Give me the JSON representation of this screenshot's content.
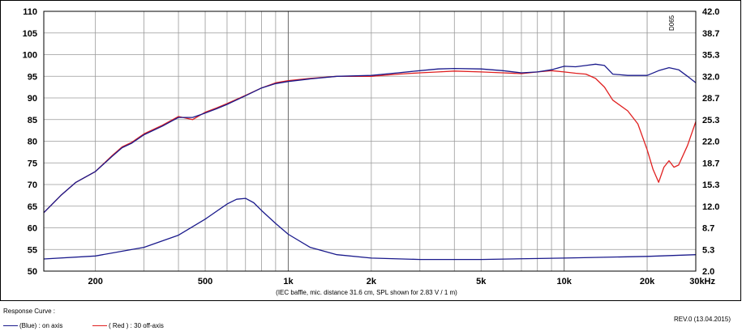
{
  "chart_data": {
    "type": "line",
    "xscale": "log",
    "xlim": [
      130,
      30000
    ],
    "ylim": [
      50,
      110
    ],
    "y2lim": [
      2.0,
      42.0
    ],
    "grid": true,
    "y_ticks": [
      "110",
      "105",
      "100",
      "95",
      "90",
      "85",
      "80",
      "75",
      "70",
      "65",
      "60",
      "55",
      "50"
    ],
    "y2_ticks": [
      "42.0",
      "38.7",
      "35.3",
      "32.0",
      "28.7",
      "25.3",
      "22.0",
      "18.7",
      "15.3",
      "12.0",
      "8.7",
      "5.3",
      "2.0"
    ],
    "x_tick_labels": [
      {
        "x": 200,
        "label": "200"
      },
      {
        "x": 500,
        "label": "500"
      },
      {
        "x": 1000,
        "label": "1k"
      },
      {
        "x": 2000,
        "label": "2k"
      },
      {
        "x": 5000,
        "label": "5k"
      },
      {
        "x": 10000,
        "label": "10k"
      },
      {
        "x": 20000,
        "label": "20k"
      },
      {
        "x": 30000,
        "label": "30kHz"
      }
    ],
    "xlabel": "(IEC baffle, mic. distance 31.6 cm, SPL shown for 2.83 V / 1 m)",
    "corner_text": "D065",
    "series": [
      {
        "name": "(Blue) : on axis",
        "color": "#1a1a8c",
        "x": [
          130,
          150,
          170,
          200,
          230,
          250,
          270,
          300,
          350,
          400,
          450,
          500,
          550,
          600,
          700,
          800,
          900,
          1000,
          1200,
          1500,
          2000,
          2500,
          3000,
          3500,
          4000,
          5000,
          6000,
          7000,
          8000,
          9000,
          10000,
          11000,
          12000,
          13000,
          14000,
          15000,
          17000,
          20000,
          22000,
          24000,
          26000,
          28000,
          30000
        ],
        "y": [
          63.5,
          67.5,
          70.5,
          73,
          76.5,
          78.5,
          79.5,
          81.5,
          83.5,
          85.5,
          85.5,
          86.5,
          87.5,
          88.5,
          90.5,
          92.3,
          93.3,
          93.8,
          94.4,
          95,
          95.2,
          95.8,
          96.3,
          96.7,
          96.8,
          96.7,
          96.3,
          95.8,
          96,
          96.5,
          97.3,
          97.2,
          97.5,
          97.8,
          97.5,
          95.5,
          95.2,
          95.2,
          96.3,
          97,
          96.5,
          95,
          93.5
        ]
      },
      {
        "name": "( Red ) : 30 off-axis",
        "color": "#e02020",
        "x": [
          130,
          150,
          170,
          200,
          230,
          250,
          270,
          300,
          350,
          400,
          450,
          500,
          550,
          600,
          700,
          800,
          900,
          1000,
          1200,
          1500,
          2000,
          2500,
          3000,
          3500,
          4000,
          5000,
          6000,
          7000,
          8000,
          9000,
          10000,
          11000,
          12000,
          13000,
          14000,
          15000,
          17000,
          18500,
          20000,
          21000,
          22000,
          23000,
          24000,
          25000,
          26000,
          28000,
          30000
        ],
        "y": [
          63.5,
          67.5,
          70.5,
          73,
          76.7,
          78.7,
          79.7,
          81.7,
          83.7,
          85.7,
          85,
          86.7,
          87.7,
          88.7,
          90.6,
          92.3,
          93.5,
          94,
          94.5,
          95,
          95,
          95.5,
          95.8,
          96,
          96.2,
          96,
          95.8,
          95.6,
          96,
          96.3,
          96,
          95.7,
          95.5,
          94.5,
          92.5,
          89.5,
          87,
          84,
          78,
          73.5,
          70.5,
          74,
          75.5,
          74,
          74.5,
          79,
          84.5
        ]
      },
      {
        "name": "impedance",
        "color": "#1a1a8c",
        "x": [
          130,
          200,
          300,
          400,
          500,
          600,
          650,
          700,
          750,
          800,
          900,
          1000,
          1200,
          1500,
          2000,
          3000,
          5000,
          10000,
          20000,
          30000
        ],
        "y": [
          52.8,
          53.5,
          55.5,
          58.3,
          62,
          65.5,
          66.6,
          66.8,
          65.8,
          64,
          61,
          58.5,
          55.5,
          53.8,
          53,
          52.7,
          52.7,
          53,
          53.4,
          53.8
        ]
      }
    ]
  },
  "footer": {
    "response_curve": "Response Curve :",
    "blue_legend": "(Blue) : on axis",
    "red_legend": "( Red ) : 30 off-axis",
    "revision": "REV.0 (13.04.2015)"
  }
}
